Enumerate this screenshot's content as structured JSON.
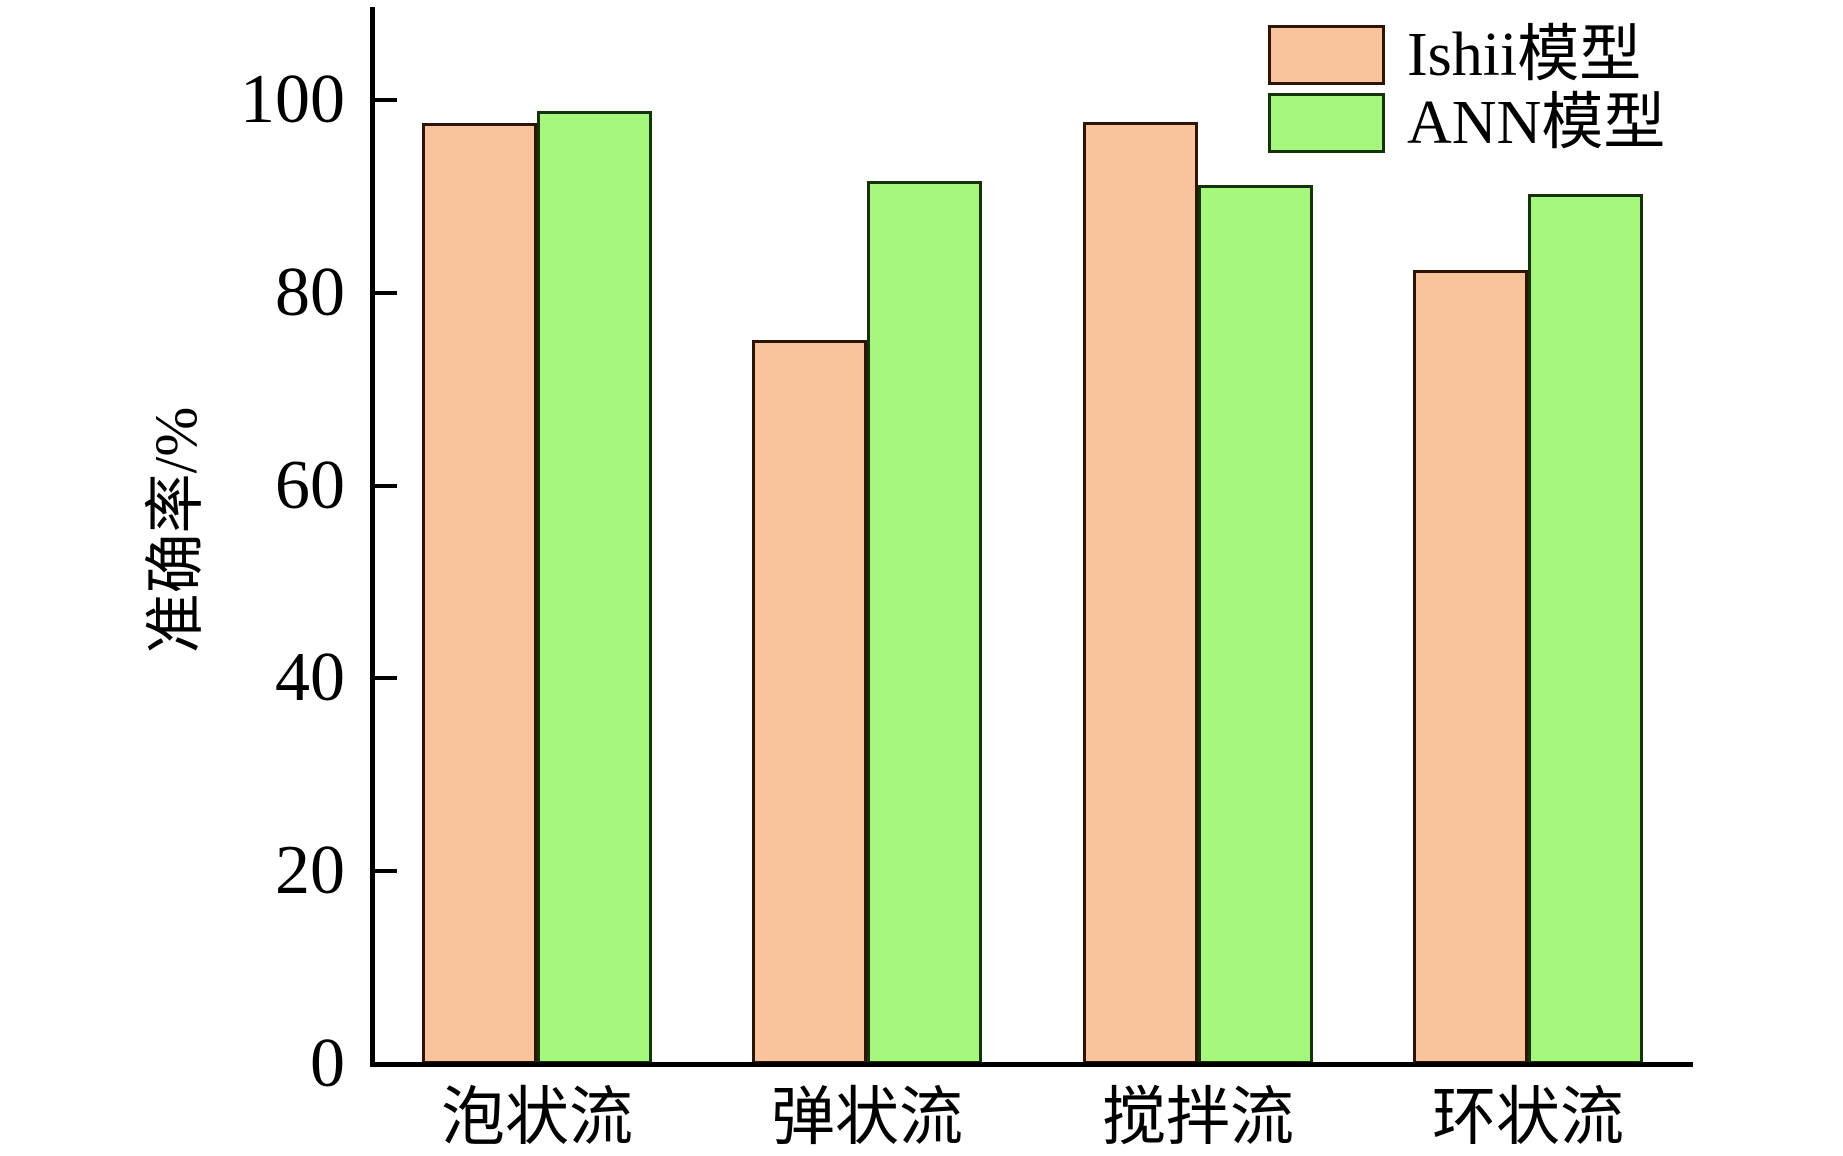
{
  "figure": {
    "background_color": "#ffffff",
    "text_color": "#000000",
    "axis_color": "#000000"
  },
  "chart_data": {
    "type": "bar",
    "title": "",
    "xlabel": "",
    "ylabel": "准确率/%",
    "categories": [
      "泡状流",
      "弹状流",
      "搅拌流",
      "环状流"
    ],
    "series": [
      {
        "name": "Ishii模型",
        "color": "#f9c49b",
        "edge_color": "#2e1405",
        "values": [
          97.6,
          75.1,
          97.7,
          82.4
        ]
      },
      {
        "name": "ANN模型",
        "color": "#a5f87c",
        "edge_color": "#143309",
        "values": [
          98.9,
          91.6,
          91.2,
          90.2
        ]
      }
    ],
    "ytick_labels": [
      "0",
      "20",
      "40",
      "60",
      "80",
      "100"
    ],
    "ytick_values": [
      0,
      20,
      40,
      60,
      80,
      100
    ],
    "ylim": [
      0,
      109.6
    ],
    "bar_width_fraction": 0.35,
    "grid": false,
    "legend_position": "top-right"
  }
}
